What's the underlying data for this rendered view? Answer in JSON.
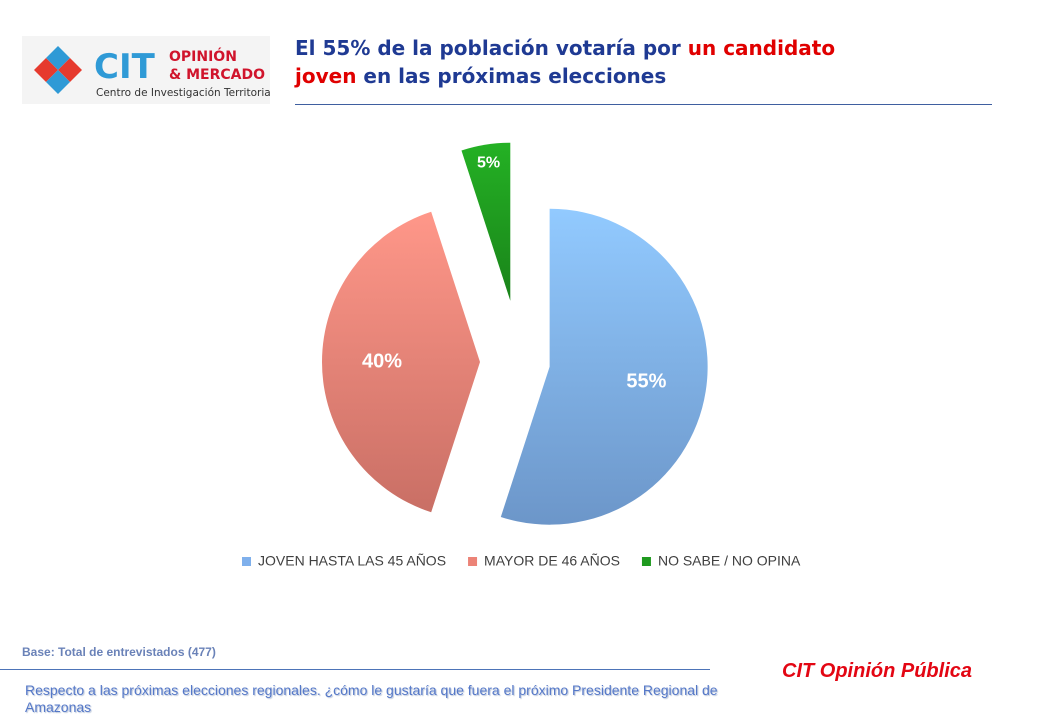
{
  "logo": {
    "mark": "CIT",
    "line1": "OPINIÓN",
    "line2": "& MERCADO",
    "tagline": "Centro de Investigación Territorial"
  },
  "header": {
    "title_part1": "El 55% de la población votaría por ",
    "title_highlight1": "un candidato",
    "title_highlight2": "joven",
    "title_part2": " en las próximas elecciones"
  },
  "chart_data": {
    "type": "pie",
    "title": "",
    "slices": [
      {
        "label": "JOVEN HASTA LAS 45 AÑOS",
        "value": 55,
        "data_label": "55%",
        "color": "#7fb0ec"
      },
      {
        "label": "MAYOR DE 46 AÑOS",
        "value": 40,
        "data_label": "40%",
        "color": "#ec8377"
      },
      {
        "label": "NO SABE / NO OPINA",
        "value": 5,
        "data_label": "5%",
        "color": "#1f9a1f"
      }
    ],
    "legend_position": "bottom",
    "exploded": true
  },
  "footer": {
    "base_note": "Base: Total de entrevistados (477)",
    "question": "Respecto a las próximas elecciones regionales. ¿cómo le gustaría que fuera el próximo Presidente Regional de Amazonas",
    "brand": "CIT Opinión Pública"
  },
  "colors": {
    "title": "#1f3a93",
    "highlight": "#e00000",
    "brand": "#e30613"
  }
}
